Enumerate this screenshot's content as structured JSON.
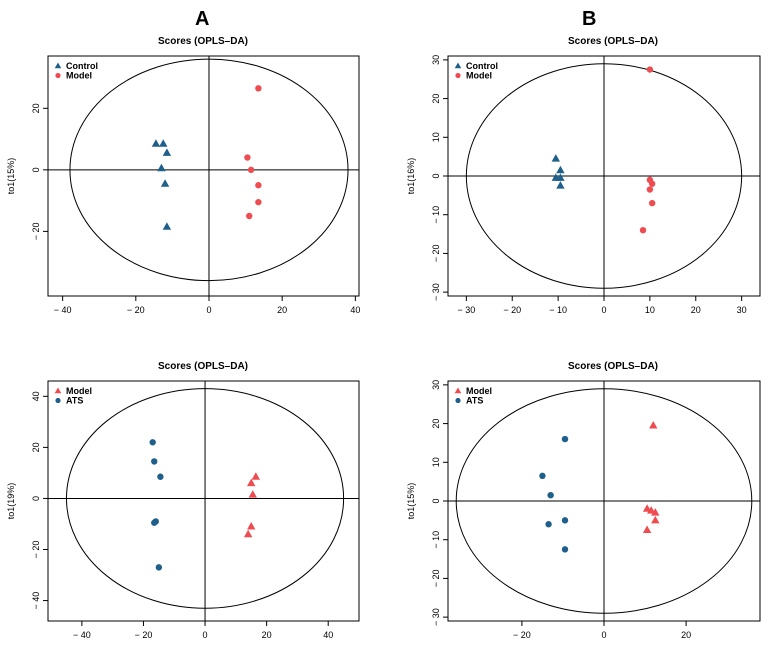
{
  "panel_labels": {
    "a": "A",
    "b": "B"
  },
  "colors": {
    "blue": "#1f5f8b",
    "red": "#ee4c50",
    "axis": "#000000"
  },
  "chart_data": [
    {
      "type": "scatter",
      "title": "Scores (OPLS–DA)",
      "ylabel": "to1(15%)",
      "xlim": [
        -44,
        41
      ],
      "ylim": [
        -41,
        37
      ],
      "xticks": [
        -40,
        -20,
        0,
        20,
        40
      ],
      "xtick_labels": [
        "− 40",
        "− 20",
        "0",
        "20",
        "40"
      ],
      "yticks": [
        20,
        0,
        -20
      ],
      "ytick_labels": [
        "20",
        "0",
        "− 20"
      ],
      "ellipse": {
        "rx": 38,
        "ry": 36
      },
      "grid": false,
      "legend_position": "top-left",
      "series": [
        {
          "name": "Control",
          "marker": "triangle",
          "color": "#1f5f8b",
          "points": [
            [
              -14.5,
              8.5
            ],
            [
              -12.5,
              8.5
            ],
            [
              -11.5,
              5.5
            ],
            [
              -13,
              0.5
            ],
            [
              -12,
              -4.5
            ],
            [
              -11.5,
              -18.5
            ]
          ]
        },
        {
          "name": "Model",
          "marker": "circle",
          "color": "#ee4c50",
          "points": [
            [
              13.5,
              26.5
            ],
            [
              10.5,
              4
            ],
            [
              11.5,
              0
            ],
            [
              13.5,
              -5
            ],
            [
              13.5,
              -10.5
            ],
            [
              11,
              -15
            ]
          ]
        }
      ]
    },
    {
      "type": "scatter",
      "title": "Scores (OPLS–DA)",
      "ylabel": "to1(16%)",
      "xlim": [
        -34,
        34
      ],
      "ylim": [
        -31,
        31
      ],
      "xticks": [
        -30,
        -20,
        -10,
        0,
        10,
        20,
        30
      ],
      "xtick_labels": [
        "− 30",
        "− 20",
        "− 10",
        "0",
        "10",
        "20",
        "30"
      ],
      "yticks": [
        30,
        20,
        10,
        0,
        -10,
        -20,
        -30
      ],
      "ytick_labels": [
        "30",
        "20",
        "10",
        "0",
        "− 10",
        "− 20",
        "− 30"
      ],
      "ellipse": {
        "rx": 30,
        "ry": 29
      },
      "grid": false,
      "legend_position": "top-left",
      "series": [
        {
          "name": "Control",
          "marker": "triangle",
          "color": "#1f5f8b",
          "points": [
            [
              -10.5,
              4.5
            ],
            [
              -9.5,
              1.5
            ],
            [
              -10.5,
              -0.5
            ],
            [
              -9.5,
              -0.5
            ],
            [
              -9.5,
              -2.5
            ]
          ]
        },
        {
          "name": "Model",
          "marker": "circle",
          "color": "#ee4c50",
          "points": [
            [
              10,
              27.5
            ],
            [
              10,
              -1
            ],
            [
              10.5,
              -2
            ],
            [
              10,
              -3.5
            ],
            [
              10.5,
              -7
            ],
            [
              8.5,
              -14
            ]
          ]
        }
      ]
    },
    {
      "type": "scatter",
      "title": "Scores (OPLS–DA)",
      "ylabel": "to1(19%)",
      "xlim": [
        -51,
        50
      ],
      "ylim": [
        -48,
        46
      ],
      "xticks": [
        -40,
        -20,
        0,
        20,
        40
      ],
      "xtick_labels": [
        "− 40",
        "− 20",
        "0",
        "20",
        "40"
      ],
      "yticks": [
        40,
        20,
        0,
        -20,
        -40
      ],
      "ytick_labels": [
        "40",
        "20",
        "0",
        "− 20",
        "− 40"
      ],
      "ellipse": {
        "rx": 45,
        "ry": 43
      },
      "grid": false,
      "legend_position": "top-left",
      "series": [
        {
          "name": "Model",
          "marker": "triangle",
          "color": "#ee4c50",
          "points": [
            [
              16.5,
              8.5
            ],
            [
              15,
              6
            ],
            [
              15.5,
              1.5
            ],
            [
              15,
              -11
            ],
            [
              14,
              -14
            ]
          ]
        },
        {
          "name": "ATS",
          "marker": "circle",
          "color": "#1f5f8b",
          "points": [
            [
              -17,
              22
            ],
            [
              -16.5,
              14.5
            ],
            [
              -14.5,
              8.5
            ],
            [
              -16.5,
              -9.5
            ],
            [
              -16,
              -9
            ],
            [
              -15,
              -27
            ]
          ]
        }
      ]
    },
    {
      "type": "scatter",
      "title": "Scores (OPLS–DA)",
      "ylabel": "to1(15%)",
      "xlim": [
        -38,
        38
      ],
      "ylim": [
        -31,
        31
      ],
      "xticks": [
        -20,
        0,
        20
      ],
      "xtick_labels": [
        "− 20",
        "0",
        "20"
      ],
      "yticks": [
        30,
        20,
        10,
        0,
        -10,
        -20,
        -30
      ],
      "ytick_labels": [
        "30",
        "20",
        "10",
        "0",
        "− 10",
        "− 20",
        "− 30"
      ],
      "ellipse": {
        "rx": 36,
        "ry": 29
      },
      "grid": false,
      "legend_position": "top-left",
      "series": [
        {
          "name": "Model",
          "marker": "triangle",
          "color": "#ee4c50",
          "points": [
            [
              12,
              19.5
            ],
            [
              10.5,
              -2
            ],
            [
              11.5,
              -2.5
            ],
            [
              12.5,
              -3
            ],
            [
              12.5,
              -5
            ],
            [
              10.5,
              -7.5
            ]
          ]
        },
        {
          "name": "ATS",
          "marker": "circle",
          "color": "#1f5f8b",
          "points": [
            [
              -9.5,
              16
            ],
            [
              -15,
              6.5
            ],
            [
              -13,
              1.5
            ],
            [
              -13.5,
              -6
            ],
            [
              -9.5,
              -5
            ],
            [
              -9.5,
              -12.5
            ]
          ]
        }
      ]
    }
  ]
}
